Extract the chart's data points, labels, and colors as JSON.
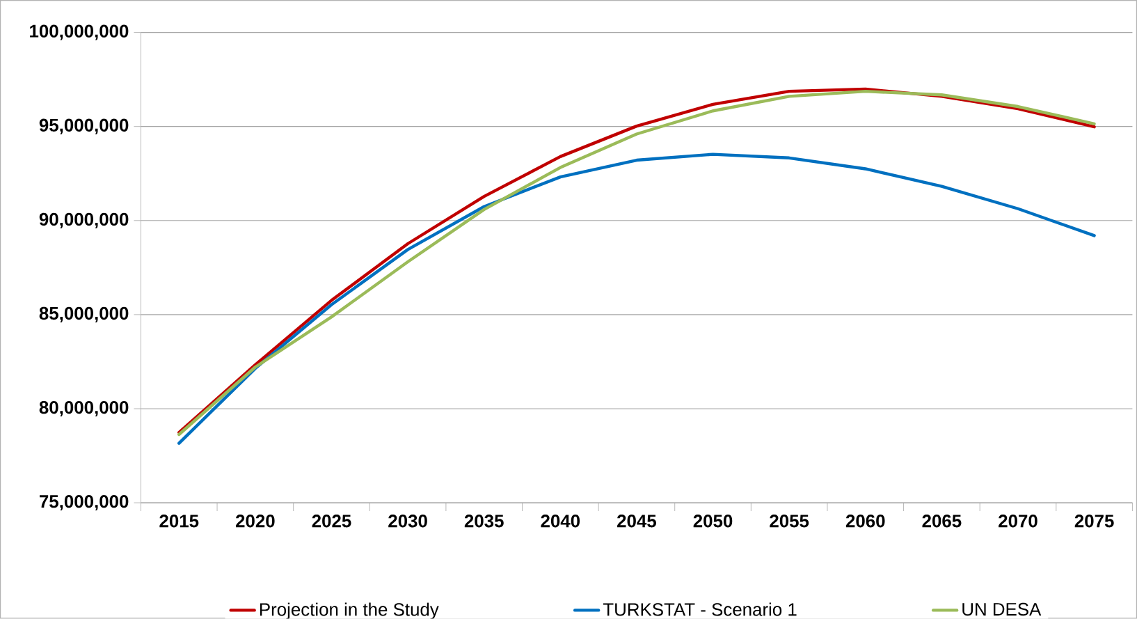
{
  "chart_data": {
    "type": "line",
    "categories": [
      "2015",
      "2020",
      "2025",
      "2030",
      "2035",
      "2040",
      "2045",
      "2050",
      "2055",
      "2060",
      "2065",
      "2070",
      "2075"
    ],
    "series": [
      {
        "name": "Projection in the Study",
        "color": "#c00000",
        "values": [
          78740000,
          82330000,
          85760000,
          88770000,
          91280000,
          93400000,
          95020000,
          96180000,
          96870000,
          96990000,
          96600000,
          95950000,
          94980000
        ]
      },
      {
        "name": "TURKSTAT - Scenario 1",
        "color": "#0070c0",
        "values": [
          78160000,
          82140000,
          85530000,
          88460000,
          90740000,
          92320000,
          93210000,
          93520000,
          93330000,
          92750000,
          91820000,
          90630000,
          89200000
        ]
      },
      {
        "name": "UN DESA",
        "color": "#9bbb59",
        "values": [
          78630000,
          82210000,
          84880000,
          87810000,
          90590000,
          92820000,
          94600000,
          95830000,
          96600000,
          96870000,
          96680000,
          96060000,
          95140000
        ]
      }
    ],
    "ylim": [
      75000000,
      100000000
    ],
    "yticks": [
      {
        "value": 75000000,
        "label": "75,000,000"
      },
      {
        "value": 80000000,
        "label": "80,000,000"
      },
      {
        "value": 85000000,
        "label": "85,000,000"
      },
      {
        "value": 90000000,
        "label": "90,000,000"
      },
      {
        "value": 95000000,
        "label": "95,000,000"
      },
      {
        "value": 100000000,
        "label": "100,000,000"
      }
    ],
    "grid": "y",
    "legend": "bottom",
    "marker": "none",
    "line_style": "solid"
  }
}
